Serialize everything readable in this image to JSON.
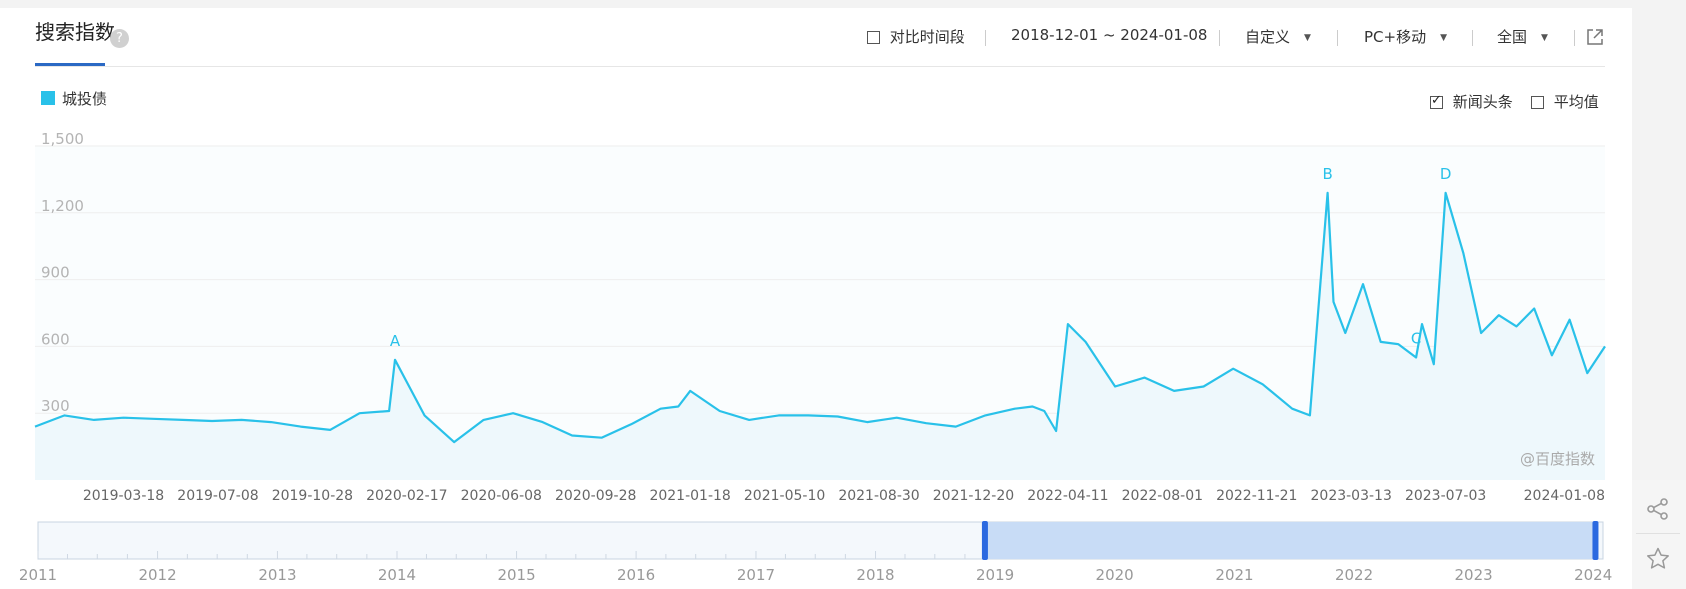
{
  "header": {
    "title": "搜索指数",
    "help": "?",
    "compare_label": "对比时间段",
    "date_range": "2018-12-01 ~ 2024-01-08",
    "custom_label": "自定义",
    "device_label": "PC+移动",
    "region_label": "全国"
  },
  "legend": {
    "series_name": "城投债"
  },
  "options": {
    "news_label": "新闻头条",
    "news_checked": true,
    "avg_label": "平均值",
    "avg_checked": false
  },
  "watermark": "@百度指数",
  "colors": {
    "line": "#29c1e9",
    "fill": "#eef8fc",
    "grid": "#eeeeee",
    "axis_text": "#666666",
    "accent": "#2b69c4",
    "navigator_selected": "#c8dcf6"
  },
  "chart_data": {
    "type": "area",
    "series": [
      {
        "name": "城投债",
        "x": [
          "2018-12-03",
          "2019-01-07",
          "2019-02-11",
          "2019-03-18",
          "2019-04-22",
          "2019-05-27",
          "2019-07-01",
          "2019-08-05",
          "2019-09-09",
          "2019-10-14",
          "2019-11-18",
          "2019-12-23",
          "2020-01-27",
          "2020-02-03",
          "2020-03-09",
          "2020-04-13",
          "2020-05-18",
          "2020-06-22",
          "2020-07-27",
          "2020-08-31",
          "2020-10-05",
          "2020-11-09",
          "2020-12-14",
          "2021-01-04",
          "2021-01-18",
          "2021-02-22",
          "2021-03-29",
          "2021-05-03",
          "2021-06-07",
          "2021-07-12",
          "2021-08-16",
          "2021-09-20",
          "2021-10-25",
          "2021-11-29",
          "2022-01-03",
          "2022-02-07",
          "2022-02-28",
          "2022-03-14",
          "2022-03-28",
          "2022-04-11",
          "2022-05-02",
          "2022-06-06",
          "2022-07-11",
          "2022-08-15",
          "2022-09-19",
          "2022-10-24",
          "2022-11-28",
          "2023-01-02",
          "2023-01-23",
          "2023-02-13",
          "2023-02-20",
          "2023-03-06",
          "2023-03-27",
          "2023-04-17",
          "2023-05-08",
          "2023-05-29",
          "2023-06-05",
          "2023-06-19",
          "2023-07-03",
          "2023-07-24",
          "2023-08-14",
          "2023-09-04",
          "2023-09-25",
          "2023-10-16",
          "2023-11-06",
          "2023-11-27",
          "2023-12-18",
          "2024-01-08"
        ],
        "values": [
          240,
          290,
          270,
          280,
          275,
          270,
          265,
          270,
          260,
          240,
          225,
          300,
          310,
          540,
          290,
          170,
          270,
          300,
          260,
          200,
          190,
          250,
          320,
          330,
          400,
          310,
          270,
          290,
          290,
          285,
          260,
          280,
          255,
          240,
          290,
          320,
          330,
          310,
          220,
          700,
          620,
          420,
          460,
          400,
          420,
          500,
          430,
          320,
          290,
          1290,
          800,
          660,
          880,
          620,
          610,
          550,
          700,
          520,
          1290,
          1020,
          660,
          740,
          690,
          770,
          560,
          720,
          480,
          600
        ]
      }
    ],
    "annotations": [
      {
        "label": "A",
        "x": "2020-02-03"
      },
      {
        "label": "B",
        "x": "2023-02-13"
      },
      {
        "label": "C",
        "x": "2023-05-29"
      },
      {
        "label": "D",
        "x": "2023-07-03"
      }
    ],
    "x_tick_labels": [
      "2019-03-18",
      "2019-07-08",
      "2019-10-28",
      "2020-02-17",
      "2020-06-08",
      "2020-09-28",
      "2021-01-18",
      "2021-05-10",
      "2021-08-30",
      "2021-12-20",
      "2022-04-11",
      "2022-08-01",
      "2022-11-21",
      "2023-03-13",
      "2023-07-03",
      "2024-01-08"
    ],
    "y_ticks": [
      300,
      600,
      900,
      1200,
      1500
    ],
    "y_tick_labels": [
      "300",
      "600",
      "900",
      "1,200",
      "1,500"
    ],
    "ylim": [
      0,
      1500
    ],
    "xlim": [
      "2018-12-03",
      "2024-01-08"
    ],
    "grid": true,
    "navigator": {
      "year_labels": [
        "2011",
        "2012",
        "2013",
        "2014",
        "2015",
        "2016",
        "2017",
        "2018",
        "2019",
        "2020",
        "2021",
        "2022",
        "2023",
        "2024"
      ],
      "range": [
        "2011-01-01",
        "2024-01-31"
      ],
      "selected": [
        "2018-12-01",
        "2024-01-08"
      ]
    }
  }
}
